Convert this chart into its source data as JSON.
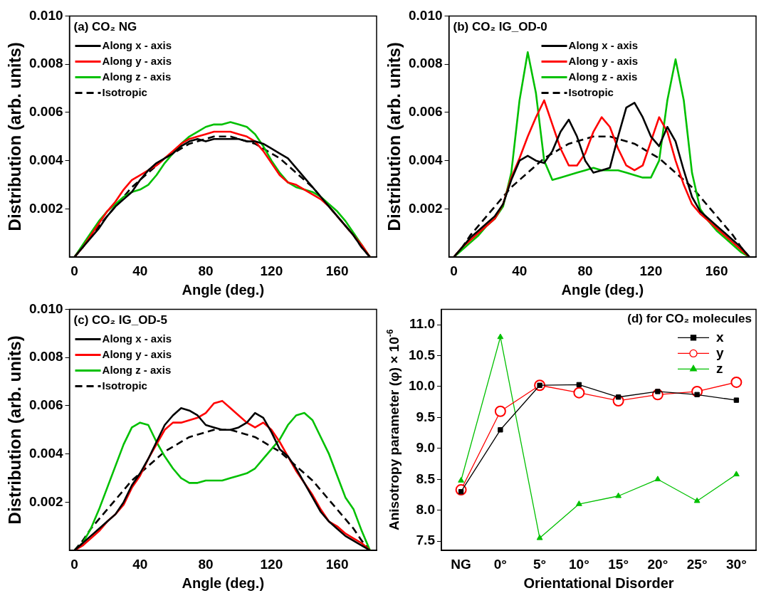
{
  "chart_data": [
    {
      "type": "line",
      "title": "(a) CO₂ NG",
      "xlabel": "Angle (deg.)",
      "ylabel": "Distribution (arb. units)",
      "xlim": [
        -3,
        184
      ],
      "xticks": [
        0,
        40,
        80,
        120,
        160
      ],
      "ylim": [
        0,
        0.01
      ],
      "yticks": [
        0.002,
        0.004,
        0.006,
        0.008,
        {
          "value": 0.01,
          "label": "0.010"
        }
      ],
      "legend": "top left",
      "grid": false,
      "x": [
        0,
        5,
        10,
        15,
        20,
        25,
        30,
        35,
        40,
        45,
        50,
        55,
        60,
        65,
        70,
        75,
        80,
        85,
        90,
        95,
        100,
        105,
        110,
        115,
        120,
        125,
        130,
        135,
        140,
        145,
        150,
        155,
        160,
        165,
        170,
        175,
        180
      ],
      "series": [
        {
          "name": "Along x - axis",
          "color": "#000000",
          "values": [
            0,
            0.0004,
            0.0008,
            0.0012,
            0.0017,
            0.0021,
            0.0024,
            0.0027,
            0.0032,
            0.0036,
            0.0039,
            0.0041,
            0.0043,
            0.0046,
            0.0048,
            0.0049,
            0.0048,
            0.0049,
            0.0049,
            0.0049,
            0.0049,
            0.0048,
            0.0048,
            0.0047,
            0.0045,
            0.0043,
            0.0041,
            0.0037,
            0.0033,
            0.0029,
            0.0025,
            0.0021,
            0.0017,
            0.0013,
            0.0009,
            0.0004,
            0
          ]
        },
        {
          "name": "Along y - axis",
          "color": "#ff0000",
          "values": [
            0,
            0.0004,
            0.0009,
            0.0014,
            0.0019,
            0.0023,
            0.0028,
            0.0032,
            0.0034,
            0.0036,
            0.0038,
            0.0041,
            0.0044,
            0.0047,
            0.0049,
            0.005,
            0.0051,
            0.0052,
            0.0052,
            0.0052,
            0.0051,
            0.005,
            0.0048,
            0.0044,
            0.0039,
            0.0034,
            0.0031,
            0.003,
            0.0028,
            0.0026,
            0.0024,
            0.0021,
            0.0017,
            0.0013,
            0.0009,
            0.0005,
            0
          ]
        },
        {
          "name": "Along z - axis",
          "color": "#00c000",
          "values": [
            0,
            0.0005,
            0.001,
            0.0015,
            0.0019,
            0.0022,
            0.0025,
            0.0027,
            0.0028,
            0.003,
            0.0034,
            0.0039,
            0.0043,
            0.0047,
            0.005,
            0.0052,
            0.0054,
            0.0055,
            0.0055,
            0.0056,
            0.0055,
            0.0054,
            0.0051,
            0.0046,
            0.004,
            0.0035,
            0.0031,
            0.0029,
            0.0028,
            0.0027,
            0.0025,
            0.0022,
            0.0019,
            0.0015,
            0.001,
            0.0005,
            0
          ]
        },
        {
          "name": "Isotropic",
          "color": "#000000",
          "line_style": "dashed",
          "values": [
            0,
            0.0004,
            0.0009,
            0.0013,
            0.0017,
            0.0021,
            0.0025,
            0.0029,
            0.0032,
            0.0035,
            0.0038,
            0.0041,
            0.0043,
            0.0045,
            0.0047,
            0.0048,
            0.0049,
            0.005,
            0.005,
            0.005,
            0.0049,
            0.0048,
            0.0047,
            0.0045,
            0.0043,
            0.0041,
            0.0038,
            0.0035,
            0.0032,
            0.0029,
            0.0025,
            0.0021,
            0.0017,
            0.0013,
            0.0009,
            0.0004,
            0
          ]
        }
      ]
    },
    {
      "type": "line",
      "title": "(b) CO₂ IG_OD-0",
      "xlabel": "Angle (deg.)",
      "ylabel": "Distribution (arb. units)",
      "xlim": [
        -3,
        184
      ],
      "xticks": [
        0,
        40,
        80,
        120,
        160
      ],
      "ylim": [
        0,
        0.01
      ],
      "yticks": [
        0.002,
        0.004,
        0.006,
        0.008,
        {
          "value": 0.01,
          "label": "0.010"
        }
      ],
      "legend": "top",
      "grid": false,
      "x": [
        0,
        5,
        10,
        15,
        20,
        25,
        30,
        35,
        40,
        45,
        50,
        55,
        60,
        65,
        70,
        75,
        80,
        85,
        90,
        95,
        100,
        105,
        110,
        115,
        120,
        125,
        130,
        135,
        140,
        145,
        150,
        155,
        160,
        165,
        170,
        175,
        180
      ],
      "series": [
        {
          "name": "Along x - axis",
          "color": "#000000",
          "values": [
            0,
            0.0004,
            0.0008,
            0.0011,
            0.0014,
            0.0017,
            0.0022,
            0.0032,
            0.004,
            0.0042,
            0.004,
            0.0039,
            0.0044,
            0.0052,
            0.0057,
            0.005,
            0.004,
            0.0035,
            0.0036,
            0.0037,
            0.005,
            0.0062,
            0.0064,
            0.0058,
            0.005,
            0.0046,
            0.0054,
            0.0048,
            0.0036,
            0.0025,
            0.0019,
            0.0016,
            0.0013,
            0.001,
            0.0007,
            0.0004,
            0
          ]
        },
        {
          "name": "Along y - axis",
          "color": "#ff0000",
          "values": [
            0,
            0.0004,
            0.0007,
            0.001,
            0.0013,
            0.0016,
            0.0022,
            0.0033,
            0.0041,
            0.005,
            0.0058,
            0.0065,
            0.0055,
            0.0045,
            0.0038,
            0.0038,
            0.0043,
            0.0052,
            0.0058,
            0.0054,
            0.0045,
            0.0038,
            0.0036,
            0.0038,
            0.0048,
            0.0058,
            0.0052,
            0.004,
            0.003,
            0.0022,
            0.0018,
            0.0015,
            0.0012,
            0.0009,
            0.0006,
            0.0003,
            0
          ]
        },
        {
          "name": "Along z - axis",
          "color": "#00c000",
          "values": [
            0,
            0.0003,
            0.0006,
            0.0009,
            0.0013,
            0.0016,
            0.0021,
            0.0035,
            0.0065,
            0.0085,
            0.0068,
            0.004,
            0.0032,
            0.0033,
            0.0034,
            0.0035,
            0.0036,
            0.0037,
            0.0036,
            0.0036,
            0.0036,
            0.0035,
            0.0034,
            0.0033,
            0.0033,
            0.004,
            0.0065,
            0.0082,
            0.0065,
            0.0035,
            0.002,
            0.0015,
            0.0011,
            0.0008,
            0.0005,
            0.0002,
            0
          ]
        },
        {
          "name": "Isotropic",
          "color": "#000000",
          "line_style": "dashed",
          "values": [
            0,
            0.0004,
            0.0009,
            0.0013,
            0.0017,
            0.0021,
            0.0025,
            0.0029,
            0.0032,
            0.0035,
            0.0038,
            0.0041,
            0.0043,
            0.0045,
            0.0047,
            0.0048,
            0.0049,
            0.005,
            0.005,
            0.005,
            0.0049,
            0.0048,
            0.0047,
            0.0045,
            0.0043,
            0.0041,
            0.0038,
            0.0035,
            0.0032,
            0.0029,
            0.0025,
            0.0021,
            0.0017,
            0.0013,
            0.0009,
            0.0004,
            0
          ]
        }
      ]
    },
    {
      "type": "line",
      "title": "(c) CO₂ IG_OD-5",
      "xlabel": "Angle (deg.)",
      "ylabel": "Distribution (arb. units)",
      "xlim": [
        -3,
        184
      ],
      "xticks": [
        0,
        40,
        80,
        120,
        160
      ],
      "ylim": [
        0,
        0.01
      ],
      "yticks": [
        0.002,
        0.004,
        0.006,
        0.008,
        {
          "value": 0.01,
          "label": "0.010"
        }
      ],
      "legend": "top left",
      "grid": false,
      "x": [
        0,
        5,
        10,
        15,
        20,
        25,
        30,
        35,
        40,
        45,
        50,
        55,
        60,
        65,
        70,
        75,
        80,
        85,
        90,
        95,
        100,
        105,
        110,
        115,
        120,
        125,
        130,
        135,
        140,
        145,
        150,
        155,
        160,
        165,
        170,
        175,
        180
      ],
      "series": [
        {
          "name": "Along x - axis",
          "color": "#000000",
          "values": [
            0,
            0.0003,
            0.0006,
            0.0009,
            0.0012,
            0.0015,
            0.002,
            0.0027,
            0.0032,
            0.0038,
            0.0045,
            0.0052,
            0.0056,
            0.0059,
            0.0058,
            0.0056,
            0.0052,
            0.0051,
            0.005,
            0.005,
            0.0051,
            0.0053,
            0.0057,
            0.0055,
            0.0049,
            0.0042,
            0.0039,
            0.0034,
            0.0028,
            0.0022,
            0.0016,
            0.0012,
            0.0009,
            0.0006,
            0.0004,
            0.0002,
            0
          ]
        },
        {
          "name": "Along y - axis",
          "color": "#ff0000",
          "values": [
            0,
            0.0002,
            0.0005,
            0.0008,
            0.0012,
            0.0015,
            0.0019,
            0.0026,
            0.0031,
            0.0038,
            0.0044,
            0.005,
            0.0053,
            0.0053,
            0.0054,
            0.0055,
            0.0057,
            0.0061,
            0.0062,
            0.0059,
            0.0056,
            0.0053,
            0.0051,
            0.0053,
            0.005,
            0.0045,
            0.0039,
            0.0033,
            0.0028,
            0.0023,
            0.0017,
            0.0012,
            0.001,
            0.0007,
            0.0005,
            0.0003,
            0
          ]
        },
        {
          "name": "Along z - axis",
          "color": "#00c000",
          "values": [
            0,
            0.0003,
            0.0009,
            0.0017,
            0.0026,
            0.0035,
            0.0044,
            0.0051,
            0.0053,
            0.0052,
            0.0045,
            0.0039,
            0.0034,
            0.003,
            0.0028,
            0.0028,
            0.0029,
            0.0029,
            0.0029,
            0.003,
            0.0031,
            0.0032,
            0.0034,
            0.0038,
            0.0042,
            0.0046,
            0.0052,
            0.0056,
            0.0057,
            0.0054,
            0.0047,
            0.004,
            0.0031,
            0.0022,
            0.0017,
            0.0008,
            0
          ]
        },
        {
          "name": "Isotropic",
          "color": "#000000",
          "line_style": "dashed",
          "values": [
            0,
            0.0004,
            0.0009,
            0.0013,
            0.0017,
            0.0021,
            0.0025,
            0.0029,
            0.0032,
            0.0035,
            0.0038,
            0.0041,
            0.0043,
            0.0045,
            0.0047,
            0.0048,
            0.0049,
            0.005,
            0.005,
            0.005,
            0.0049,
            0.0048,
            0.0047,
            0.0045,
            0.0043,
            0.0041,
            0.0038,
            0.0035,
            0.0032,
            0.0029,
            0.0025,
            0.0021,
            0.0017,
            0.0013,
            0.0009,
            0.0004,
            0
          ]
        }
      ]
    },
    {
      "type": "line",
      "title": "(d) for CO₂ molecules",
      "xlabel": "Orientational Disorder",
      "ylabel": "Anisotropy parameter (φ) × 10$^{-6}$",
      "categories": [
        "NG",
        "0°",
        "5°",
        "10°",
        "15°",
        "20°",
        "25°",
        "30°"
      ],
      "ylim": [
        7.35,
        11.25
      ],
      "yticks": [
        7.5,
        {
          "value": 8,
          "label": "8.0"
        },
        8.5,
        {
          "value": 9,
          "label": "9.0"
        },
        9.5,
        {
          "value": 10,
          "label": "10.0"
        },
        10.5,
        {
          "value": 11,
          "label": "11.0"
        }
      ],
      "legend": "top right",
      "grid": false,
      "series": [
        {
          "name": "x",
          "color": "#000000",
          "marker": "square",
          "values": [
            8.3,
            9.3,
            10.02,
            10.03,
            9.83,
            9.92,
            9.87,
            9.78
          ]
        },
        {
          "name": "y",
          "color": "#ff0000",
          "marker": "circle",
          "values": [
            8.33,
            9.6,
            10.02,
            9.9,
            9.77,
            9.87,
            9.92,
            10.07
          ]
        },
        {
          "name": "z",
          "color": "#00c000",
          "marker": "triangle",
          "values": [
            8.48,
            10.8,
            7.55,
            8.1,
            8.23,
            8.5,
            8.15,
            8.58
          ]
        }
      ]
    }
  ]
}
